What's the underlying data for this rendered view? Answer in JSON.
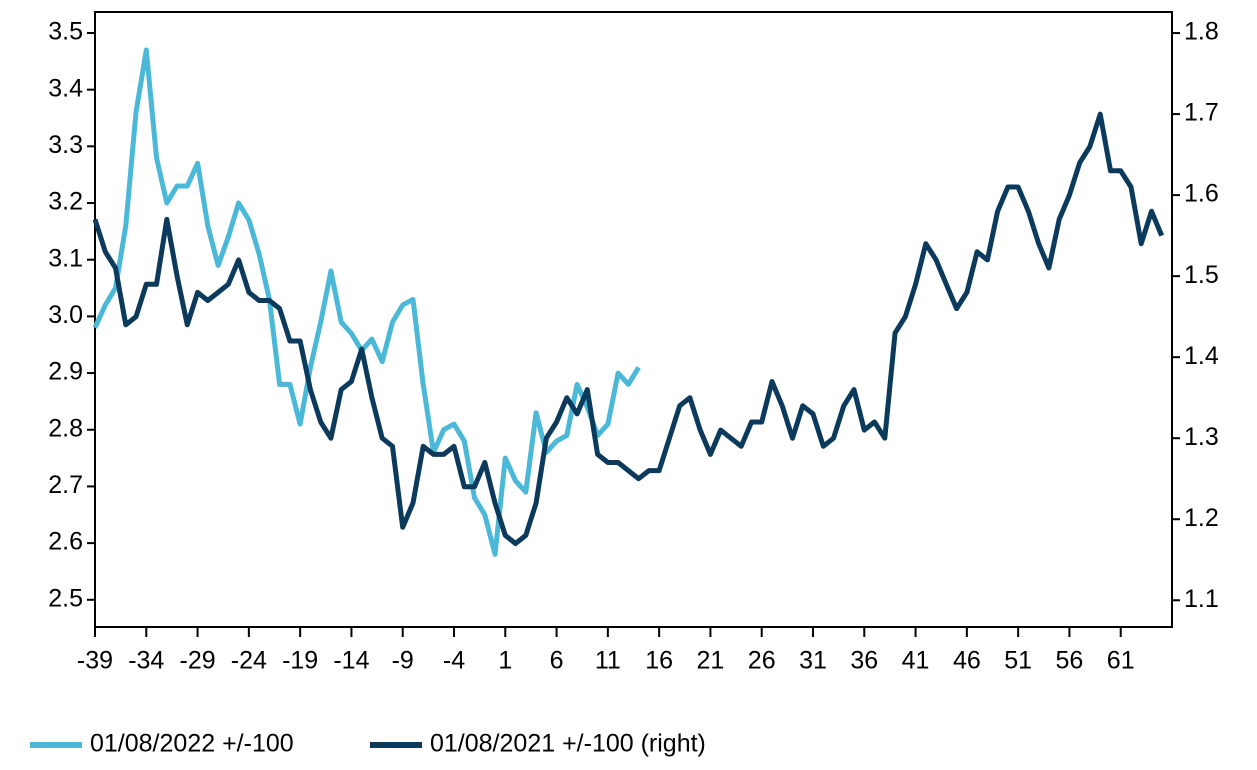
{
  "chart_data": {
    "type": "line",
    "x": [
      -39,
      -38,
      -37,
      -36,
      -35,
      -34,
      -33,
      -32,
      -31,
      -30,
      -29,
      -28,
      -27,
      -26,
      -25,
      -24,
      -23,
      -22,
      -21,
      -20,
      -19,
      -18,
      -17,
      -16,
      -15,
      -14,
      -13,
      -12,
      -11,
      -10,
      -9,
      -8,
      -7,
      -6,
      -5,
      -4,
      -3,
      -2,
      -1,
      0,
      1,
      2,
      3,
      4,
      5,
      6,
      7,
      8,
      9,
      10,
      11,
      12,
      13,
      14,
      15,
      16,
      17,
      18,
      19,
      20,
      21,
      22,
      23,
      24,
      25,
      26,
      27,
      28,
      29,
      30,
      31,
      32,
      33,
      34,
      35,
      36,
      37,
      38,
      39,
      40,
      41,
      42,
      43,
      44,
      45,
      46,
      47,
      48,
      49,
      50,
      51,
      52,
      53,
      54,
      55,
      56,
      57,
      58,
      59,
      60,
      61,
      62,
      63,
      64,
      65
    ],
    "series": [
      {
        "name": "01/08/2022 +/-100",
        "color": "#4bb8d8",
        "axis": "y",
        "values": [
          2.98,
          3.02,
          3.05,
          3.16,
          3.36,
          3.47,
          3.28,
          3.2,
          3.23,
          3.23,
          3.27,
          3.16,
          3.09,
          3.14,
          3.2,
          3.17,
          3.11,
          3.03,
          2.88,
          2.88,
          2.81,
          2.91,
          2.99,
          3.08,
          2.99,
          2.97,
          2.94,
          2.96,
          2.92,
          2.99,
          3.02,
          3.03,
          2.88,
          2.76,
          2.8,
          2.81,
          2.78,
          2.68,
          2.65,
          2.58,
          2.75,
          2.71,
          2.69,
          2.83,
          2.76,
          2.78,
          2.79,
          2.88,
          2.84,
          2.79,
          2.81,
          2.9,
          2.88,
          2.91,
          null,
          null,
          null,
          null,
          null,
          null,
          null,
          null,
          null,
          null,
          null,
          null,
          null,
          null,
          null,
          null,
          null,
          null,
          null,
          null,
          null,
          null,
          null,
          null,
          null,
          null,
          null,
          null,
          null,
          null,
          null,
          null,
          null,
          null,
          null,
          null,
          null,
          null,
          null,
          null,
          null,
          null,
          null,
          null,
          null,
          null,
          null,
          null,
          null,
          null,
          null
        ]
      },
      {
        "name": "01/08/2021 +/-100 (right)",
        "color": "#0b3a5c",
        "axis": "y2",
        "values": [
          1.57,
          1.53,
          1.51,
          1.44,
          1.45,
          1.49,
          1.49,
          1.57,
          1.5,
          1.44,
          1.48,
          1.47,
          1.48,
          1.49,
          1.52,
          1.48,
          1.47,
          1.47,
          1.46,
          1.42,
          1.42,
          1.36,
          1.32,
          1.3,
          1.36,
          1.37,
          1.41,
          1.35,
          1.3,
          1.29,
          1.19,
          1.22,
          1.29,
          1.28,
          1.28,
          1.29,
          1.24,
          1.24,
          1.27,
          1.22,
          1.18,
          1.17,
          1.18,
          1.22,
          1.3,
          1.32,
          1.35,
          1.33,
          1.36,
          1.28,
          1.27,
          1.27,
          1.26,
          1.25,
          1.26,
          1.26,
          1.3,
          1.34,
          1.35,
          1.31,
          1.28,
          1.31,
          1.3,
          1.29,
          1.32,
          1.32,
          1.37,
          1.34,
          1.3,
          1.34,
          1.33,
          1.29,
          1.3,
          1.34,
          1.36,
          1.31,
          1.32,
          1.3,
          1.43,
          1.45,
          1.49,
          1.54,
          1.52,
          1.49,
          1.46,
          1.48,
          1.53,
          1.52,
          1.58,
          1.61,
          1.61,
          1.58,
          1.54,
          1.51,
          1.57,
          1.6,
          1.64,
          1.66,
          1.7,
          1.63,
          1.63,
          1.61,
          1.54,
          1.58,
          1.55
        ]
      }
    ],
    "xlim": [
      -39,
      66
    ],
    "xticks": [
      -39,
      -34,
      -29,
      -24,
      -19,
      -14,
      -9,
      -4,
      1,
      6,
      11,
      16,
      21,
      26,
      31,
      36,
      41,
      46,
      51,
      56,
      61
    ],
    "ylim": [
      2.452,
      3.537
    ],
    "yticks": [
      2.5,
      2.6,
      2.7,
      2.8,
      2.9,
      {
        "value": 3,
        "label": "3.0"
      },
      3.1,
      3.2,
      3.3,
      3.4,
      3.5
    ],
    "y2lim": [
      1.067,
      1.826
    ],
    "y2ticks": [
      1.1,
      1.2,
      1.3,
      1.4,
      1.5,
      1.6,
      1.7,
      1.8
    ],
    "legend": "bottom"
  }
}
